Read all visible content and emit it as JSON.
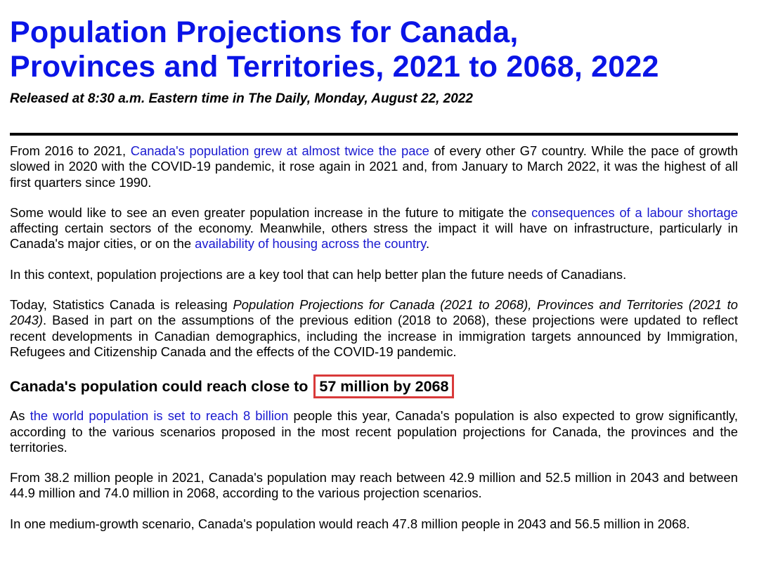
{
  "header": {
    "title_line1": "Population Projections for Canada,",
    "title_line2": "Provinces and Territories, 2021 to 2068, 2022",
    "release": "Released at 8:30 a.m. Eastern time in The Daily, Monday, August 22, 2022"
  },
  "p1": {
    "t1": "From 2016 to 2021, ",
    "link": "Canada's population grew at almost twice the pace",
    "t2": " of every other G7 country. While the pace of growth slowed in 2020 with the COVID-19 pandemic, it rose again in 2021 and, from January to March 2022, it was the highest of all first quarters since 1990."
  },
  "p2": {
    "t1": "Some would like to see an even greater population increase in the future to mitigate the ",
    "link1": "consequences of a labour shortage",
    "t2": " affecting certain sectors of the economy. Meanwhile, others stress the impact it will have on infrastructure, particularly in Canada's major cities, or on the ",
    "link2": "availability of housing across the country",
    "t3": "."
  },
  "p3": {
    "text": "In this context, population projections are a key tool that can help better plan the future needs of Canadians."
  },
  "p4": {
    "t1": "Today, Statistics Canada is releasing ",
    "italic": "Population Projections for Canada (2021 to 2068), Provinces and Territories (2021 to 2043)",
    "t2": ". Based in part on the assumptions of the previous edition (2018 to 2068), these projections were updated to reflect recent developments in Canadian demographics, including the increase in immigration targets announced by Immigration, Refugees and Citizenship Canada and the effects of the COVID-19 pandemic."
  },
  "section": {
    "heading_prefix": "Canada's population could reach close to",
    "heading_highlight": "57 million by 2068"
  },
  "p5": {
    "t1": "As ",
    "link": "the world population is set to reach 8 billion",
    "t2": " people this year, Canada's population is also expected to grow significantly, according to the various scenarios proposed in the most recent population projections for Canada, the provinces and the territories."
  },
  "p6": {
    "text": "From 38.2 million people in 2021, Canada's population may reach between 42.9 million and 52.5 million in 2043 and between 44.9 million and 74.0 million in 2068, according to the various projection scenarios."
  },
  "p7": {
    "text": "In one medium-growth scenario, Canada's population would reach 47.8 million people in 2043 and 56.5 million in 2068."
  },
  "colors": {
    "title": "#0a14e6",
    "link": "#1a1ad0",
    "highlight_border": "#d93a3a"
  }
}
